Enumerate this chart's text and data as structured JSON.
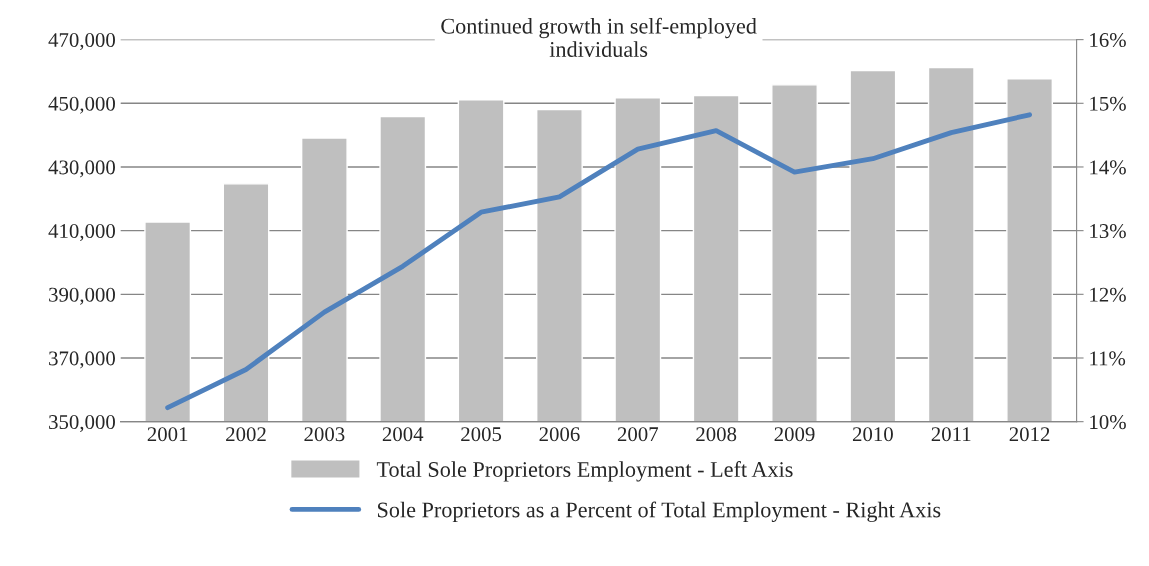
{
  "chart_data": {
    "type": "bar",
    "title": "Continued growth in self-employed\nindividuals",
    "categories": [
      "2001",
      "2002",
      "2003",
      "2004",
      "2005",
      "2006",
      "2007",
      "2008",
      "2009",
      "2010",
      "2011",
      "2012"
    ],
    "series": [
      {
        "name": "Total Sole Proprietors Employment - Left Axis",
        "color": "#bfbfbf",
        "values": [
          412700,
          424700,
          439100,
          445800,
          451100,
          448000,
          451700,
          452400,
          455800,
          460300,
          461200,
          457700
        ]
      },
      {
        "name": "Sole Proprietors as a Percent of Total Employment - Right Axis",
        "type": "line",
        "axis": "y2",
        "color": "#4f81bd",
        "values": [
          10.22,
          10.82,
          11.72,
          12.44,
          13.29,
          13.53,
          14.28,
          14.57,
          13.92,
          14.13,
          14.54,
          14.82
        ]
      }
    ],
    "ylim": [
      350000,
      470000
    ],
    "yticks": [
      {
        "value": 350000,
        "label": "350,000"
      },
      {
        "value": 370000,
        "label": "370,000"
      },
      {
        "value": 390000,
        "label": "390,000"
      },
      {
        "value": 410000,
        "label": "410,000"
      },
      {
        "value": 430000,
        "label": "430,000"
      },
      {
        "value": 450000,
        "label": "450,000"
      },
      {
        "value": 470000,
        "label": "470,000"
      }
    ],
    "y2lim": [
      10,
      16
    ],
    "y2ticks": [
      {
        "value": 10,
        "label": "10%"
      },
      {
        "value": 11,
        "label": "11%"
      },
      {
        "value": 12,
        "label": "12%"
      },
      {
        "value": 13,
        "label": "13%"
      },
      {
        "value": 14,
        "label": "14%"
      },
      {
        "value": 15,
        "label": "15%"
      },
      {
        "value": 16,
        "label": "16%"
      }
    ],
    "grid": "y",
    "legend": "bottom",
    "marker": "none",
    "line_style": "solid"
  }
}
